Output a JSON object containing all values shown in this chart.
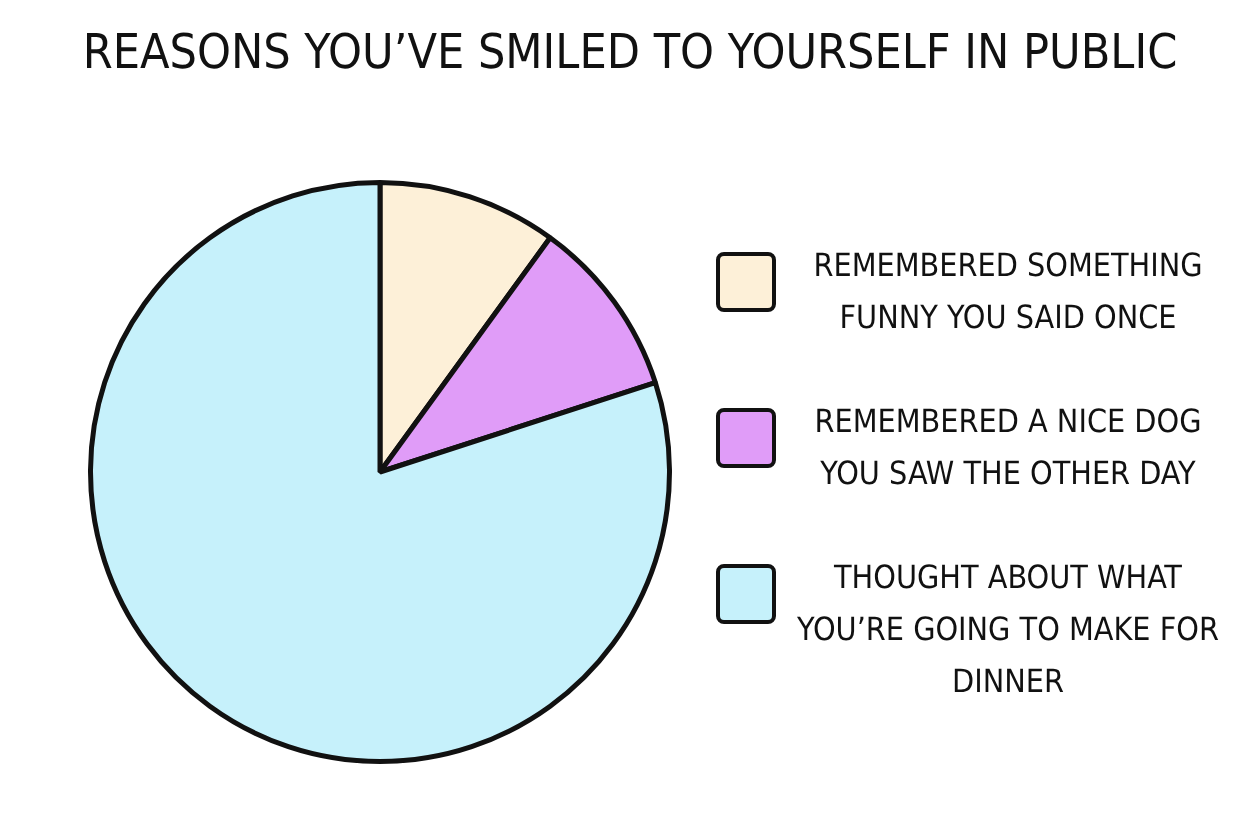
{
  "chart_data": {
    "type": "pie",
    "title": "REASONS YOU’VE SMILED TO YOURSELF IN PUBLIC",
    "categories": [
      "REMEMBERED SOMETHING FUNNY YOU SAID ONCE",
      "REMEMBERED A NICE DOG YOU SAW THE OTHER DAY",
      "THOUGHT ABOUT WHAT YOU’RE GOING TO MAKE FOR DINNER"
    ],
    "values": [
      10,
      10,
      80
    ],
    "colors": [
      "#fdf0d8",
      "#e09cf8",
      "#c6f1fb"
    ],
    "legend": "right"
  }
}
